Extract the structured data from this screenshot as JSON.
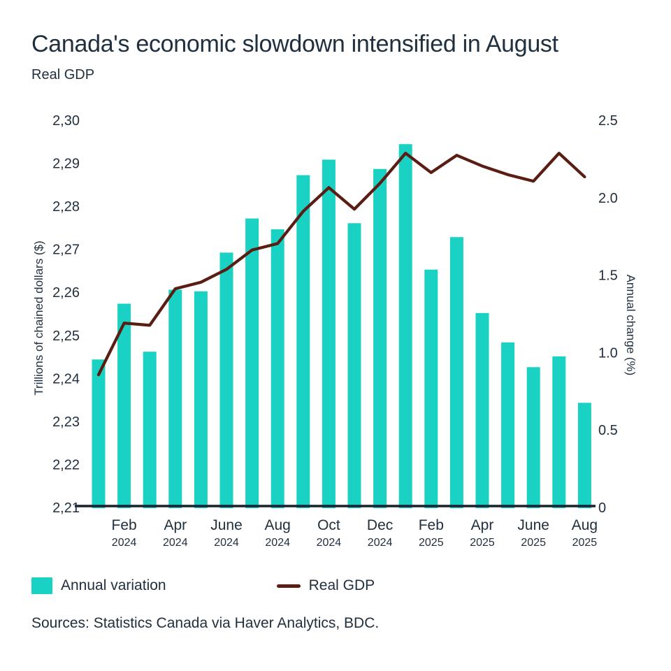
{
  "header": {
    "title": "Canada's economic slowdown intensified in August",
    "subtitle": "Real GDP"
  },
  "legend": {
    "items": [
      {
        "label": "Annual variation",
        "marker": "bar"
      },
      {
        "label": "Real GDP",
        "marker": "line"
      }
    ]
  },
  "source": "Sources: Statistics Canada via Haver Analytics, BDC.",
  "colors": {
    "bar": "#1ad2c4",
    "line": "#5a1d13",
    "axis": "#17222e",
    "text": "#20303f"
  },
  "chart_data": {
    "type": "bar",
    "subtype": "bar-and-line-dual-axis",
    "title": "Real GDP",
    "months": [
      "Jan 2024",
      "Feb 2024",
      "Mar 2024",
      "Apr 2024",
      "May 2024",
      "Jun 2024",
      "Jul 2024",
      "Aug 2024",
      "Sep 2024",
      "Oct 2024",
      "Nov 2024",
      "Dec 2024",
      "Jan 2025",
      "Feb 2025",
      "Mar 2025",
      "Apr 2025",
      "May 2025",
      "Jun 2025",
      "Jul 2025",
      "Aug 2025"
    ],
    "bar_series": {
      "name": "Annual variation",
      "axis": "right",
      "unit": "%",
      "values": [
        0.96,
        1.32,
        1.01,
        1.41,
        1.4,
        1.65,
        1.87,
        1.8,
        2.15,
        2.25,
        1.84,
        2.19,
        2.35,
        1.54,
        1.75,
        1.26,
        1.07,
        0.91,
        0.98,
        0.68
      ]
    },
    "line_series": {
      "name": "Real GDP",
      "axis": "left",
      "unit": "trillions of chained dollars ($)",
      "values": [
        2.241,
        2.253,
        2.2525,
        2.261,
        2.2625,
        2.2655,
        2.27,
        2.2715,
        2.279,
        2.2845,
        2.2795,
        2.2855,
        2.2925,
        2.288,
        2.292,
        2.2895,
        2.2875,
        2.286,
        2.2925,
        2.287
      ]
    },
    "left_axis": {
      "label": "Trillions of chained dollars ($)",
      "min": 2.21,
      "max": 2.3,
      "tick_labels": [
        "2,30",
        "2,29",
        "2,28",
        "2,27",
        "2,26",
        "2,25",
        "2,24",
        "2,23",
        "2,22",
        "2,21"
      ]
    },
    "right_axis": {
      "label": "Annual change (%)",
      "min": 0,
      "max": 2.5,
      "tick_labels": [
        "2.5",
        "2.0",
        "1.5",
        "1.0",
        "0.5",
        "0"
      ]
    },
    "x_ticks": [
      {
        "index": 1,
        "month": "Feb",
        "year": "2024"
      },
      {
        "index": 3,
        "month": "Apr",
        "year": "2024"
      },
      {
        "index": 5,
        "month": "June",
        "year": "2024"
      },
      {
        "index": 7,
        "month": "Aug",
        "year": "2024"
      },
      {
        "index": 9,
        "month": "Oct",
        "year": "2024"
      },
      {
        "index": 11,
        "month": "Dec",
        "year": "2024"
      },
      {
        "index": 13,
        "month": "Feb",
        "year": "2025"
      },
      {
        "index": 15,
        "month": "Apr",
        "year": "2025"
      },
      {
        "index": 17,
        "month": "June",
        "year": "2025"
      },
      {
        "index": 19,
        "month": "Aug",
        "year": "2025"
      }
    ],
    "grid": false,
    "legend_position": "bottom-left"
  }
}
